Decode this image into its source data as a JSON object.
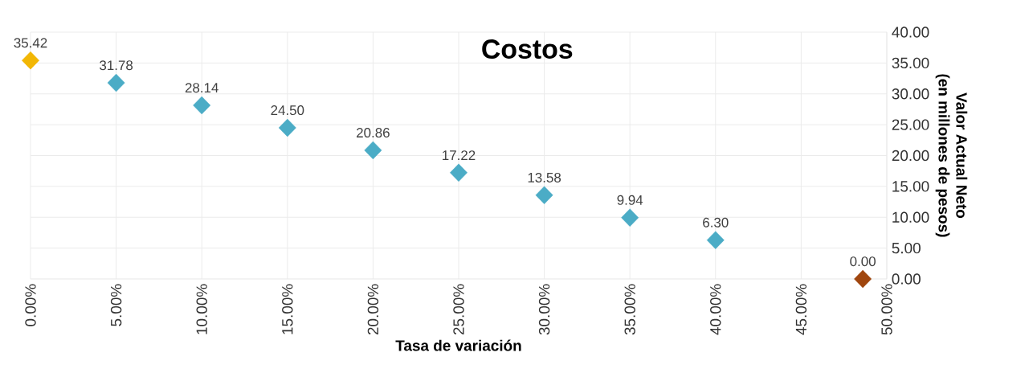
{
  "chart_data": {
    "type": "scatter",
    "title": "Costos",
    "xlabel": "Tasa de variación",
    "ylabel": "Valor Actual Neto (en millones de pesos)",
    "x": [
      0,
      5,
      10,
      15,
      20,
      25,
      30,
      35,
      40,
      48.6
    ],
    "values": [
      35.42,
      31.78,
      28.14,
      24.5,
      20.86,
      17.22,
      13.58,
      9.94,
      6.3,
      0.0
    ],
    "colors": [
      "#f2b705",
      "#4bacc6",
      "#4bacc6",
      "#4bacc6",
      "#4bacc6",
      "#4bacc6",
      "#4bacc6",
      "#4bacc6",
      "#4bacc6",
      "#a0460e"
    ],
    "value_labels": [
      "35.42",
      "31.78",
      "28.14",
      "24.50",
      "20.86",
      "17.22",
      "13.58",
      "9.94",
      "6.30",
      "0.00"
    ],
    "marker": "diamond",
    "grid": true,
    "xlim": [
      0,
      50
    ],
    "xticks": [
      {
        "value": 0,
        "label": "0.00%"
      },
      {
        "value": 5,
        "label": "5.00%"
      },
      {
        "value": 10,
        "label": "10.00%"
      },
      {
        "value": 15,
        "label": "15.00%"
      },
      {
        "value": 20,
        "label": "20.00%"
      },
      {
        "value": 25,
        "label": "25.00%"
      },
      {
        "value": 30,
        "label": "30.00%"
      },
      {
        "value": 35,
        "label": "35.00%"
      },
      {
        "value": 40,
        "label": "40.00%"
      },
      {
        "value": 45,
        "label": "45.00%"
      },
      {
        "value": 50,
        "label": "50.00%"
      }
    ],
    "ylim": [
      0,
      40
    ],
    "yticks": [
      {
        "value": 0,
        "label": "0.00"
      },
      {
        "value": 5,
        "label": "5.00"
      },
      {
        "value": 10,
        "label": "10.00"
      },
      {
        "value": 15,
        "label": "15.00"
      },
      {
        "value": 20,
        "label": "20.00"
      },
      {
        "value": 25,
        "label": "25.00"
      },
      {
        "value": 30,
        "label": "30.00"
      },
      {
        "value": 35,
        "label": "35.00"
      },
      {
        "value": 40,
        "label": "40.00"
      }
    ]
  }
}
